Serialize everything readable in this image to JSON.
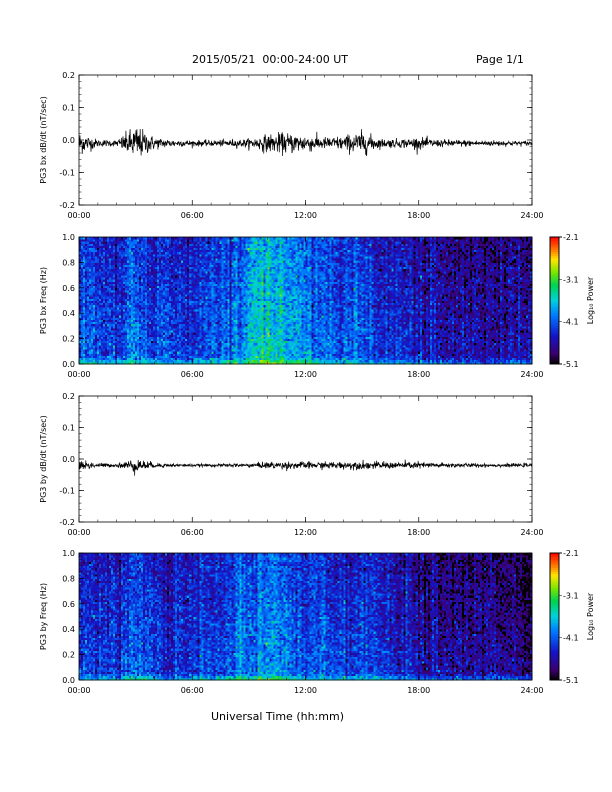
{
  "header": {
    "date_range": "2015/05/21  00:00-24:00 UT",
    "page": "Page 1/1"
  },
  "footer": {
    "xlabel": "Universal Time (hh:mm)"
  },
  "chart_data": [
    {
      "type": "line",
      "ylabel": "PG3 bx dB/dt (nT/sec)",
      "xlim": [
        "00:00",
        "24:00"
      ],
      "x_ticks": [
        "00:00",
        "06:00",
        "12:00",
        "18:00",
        "24:00"
      ],
      "ylim": [
        -0.2,
        0.2
      ],
      "y_ticks": [
        "0.2",
        "0.1",
        "0.0",
        "-0.1",
        "-0.2"
      ],
      "baseline": -0.01,
      "envelope_hours": [
        0,
        1,
        2,
        3,
        4,
        5,
        6,
        7,
        8,
        9,
        10,
        11,
        12,
        13,
        14,
        15,
        16,
        17,
        18,
        19,
        20,
        21,
        22,
        23,
        24
      ],
      "envelope_amplitude": [
        0.04,
        0.012,
        0.01,
        0.06,
        0.02,
        0.012,
        0.01,
        0.01,
        0.012,
        0.015,
        0.03,
        0.035,
        0.03,
        0.02,
        0.025,
        0.04,
        0.015,
        0.015,
        0.02,
        0.012,
        0.012,
        0.01,
        0.01,
        0.008,
        0.008
      ]
    },
    {
      "type": "heatmap",
      "ylabel": "PG3 bx Freq (Hz)",
      "xlim": [
        "00:00",
        "24:00"
      ],
      "x_ticks": [
        "00:00",
        "06:00",
        "12:00",
        "18:00",
        "24:00"
      ],
      "ylim": [
        0.0,
        1.0
      ],
      "y_ticks": [
        "1.0",
        "0.8",
        "0.6",
        "0.4",
        "0.2",
        "0.0"
      ],
      "colorbar_label": "Log₁₀ Power",
      "colorbar_ticks": [
        "-2.1",
        "-3.1",
        "-4.1",
        "-5.1"
      ],
      "colorbar_range": [
        -5.1,
        -2.1
      ],
      "power_profile_hours": [
        0,
        2,
        3,
        4,
        6,
        8,
        9,
        10,
        11,
        12,
        13,
        14,
        15,
        16,
        17,
        18,
        20,
        22,
        24
      ],
      "power_profile_log10": [
        -4.1,
        -4.2,
        -3.9,
        -4.2,
        -4.2,
        -4.0,
        -3.7,
        -3.5,
        -3.6,
        -3.9,
        -4.0,
        -4.1,
        -4.0,
        -4.3,
        -4.3,
        -4.4,
        -4.5,
        -4.6,
        -4.6
      ]
    },
    {
      "type": "line",
      "ylabel": "PG3 by dB/dt (nT/sec)",
      "xlim": [
        "00:00",
        "24:00"
      ],
      "x_ticks": [
        "00:00",
        "06:00",
        "12:00",
        "18:00",
        "24:00"
      ],
      "ylim": [
        -0.2,
        0.2
      ],
      "y_ticks": [
        "0.2",
        "0.1",
        "0.0",
        "-0.1",
        "-0.2"
      ],
      "baseline": -0.02,
      "envelope_hours": [
        0,
        1,
        2,
        3,
        4,
        5,
        6,
        7,
        8,
        9,
        10,
        11,
        12,
        13,
        14,
        15,
        16,
        17,
        18,
        19,
        20,
        21,
        22,
        23,
        24
      ],
      "envelope_amplitude": [
        0.02,
        0.008,
        0.006,
        0.025,
        0.008,
        0.006,
        0.005,
        0.005,
        0.006,
        0.007,
        0.012,
        0.013,
        0.012,
        0.012,
        0.013,
        0.014,
        0.012,
        0.012,
        0.012,
        0.009,
        0.008,
        0.007,
        0.006,
        0.006,
        0.006
      ]
    },
    {
      "type": "heatmap",
      "ylabel": "PG3 by Freq (Hz)",
      "xlim": [
        "00:00",
        "24:00"
      ],
      "x_ticks": [
        "00:00",
        "06:00",
        "12:00",
        "18:00",
        "24:00"
      ],
      "ylim": [
        0.0,
        1.0
      ],
      "y_ticks": [
        "1.0",
        "0.8",
        "0.6",
        "0.4",
        "0.2",
        "0.0"
      ],
      "colorbar_label": "Log₁₀ Power",
      "colorbar_ticks": [
        "-2.1",
        "-3.1",
        "-4.1",
        "-5.1"
      ],
      "colorbar_range": [
        -5.1,
        -2.1
      ],
      "power_profile_hours": [
        0,
        2,
        3,
        4,
        6,
        8,
        9,
        10,
        11,
        12,
        13,
        14,
        15,
        16,
        17,
        18,
        20,
        22,
        24
      ],
      "power_profile_log10": [
        -4.2,
        -4.3,
        -4.0,
        -4.3,
        -4.3,
        -4.1,
        -3.9,
        -3.8,
        -3.9,
        -4.1,
        -4.1,
        -4.2,
        -4.1,
        -4.3,
        -4.4,
        -4.5,
        -4.6,
        -4.7,
        -4.7
      ]
    }
  ]
}
